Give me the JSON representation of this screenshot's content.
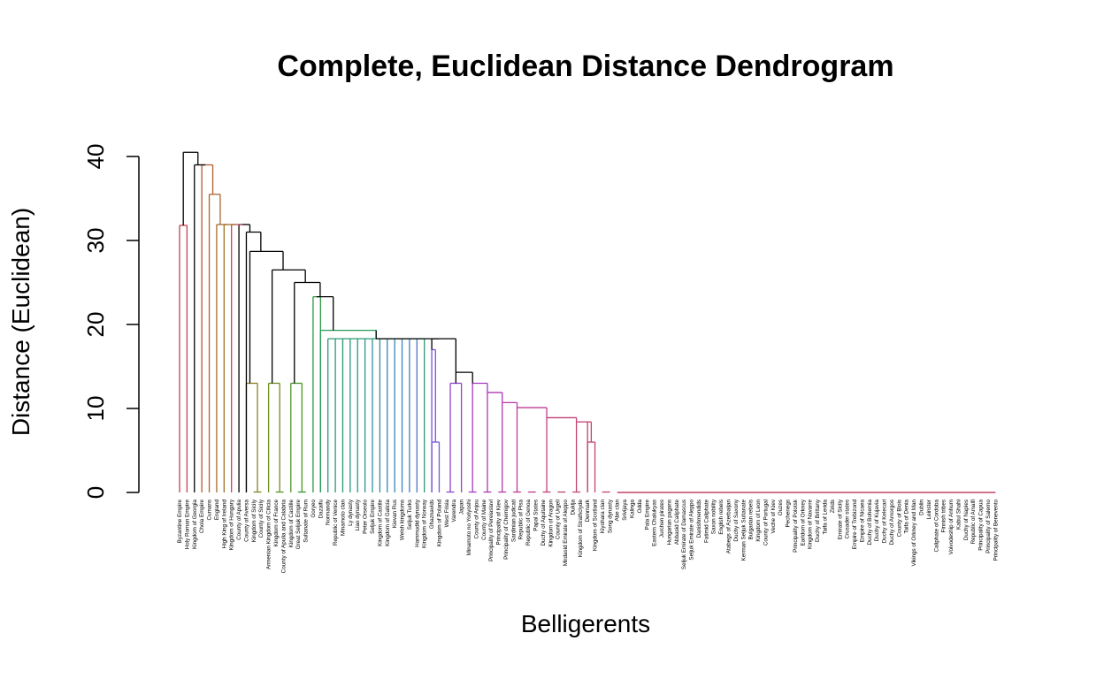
{
  "chart_data": {
    "type": "dendrogram",
    "title": "Complete, Euclidean Distance Dendrogram",
    "xlabel": "Belligerents",
    "ylabel": "Distance (Euclidean)",
    "ylim": [
      0,
      42
    ],
    "yticks": [
      0,
      10,
      20,
      30,
      40
    ],
    "leaves": [
      {
        "label": "Byzantine Empire",
        "color": "#c2434b"
      },
      {
        "label": "Holy Roman Empire",
        "color": "#c0463f"
      },
      {
        "label": "Kingdom of Georgia",
        "color": "#b9553a"
      },
      {
        "label": "Chola Empire",
        "color": "#b35d33"
      },
      {
        "label": "Cumans",
        "color": "#ad652f"
      },
      {
        "label": "England",
        "color": "#a66b2b"
      },
      {
        "label": "High King of Ireland",
        "color": "#a07128"
      },
      {
        "label": "Kingdom of Hungary",
        "color": "#997726"
      },
      {
        "label": "County of Apulia",
        "color": "#917c24"
      },
      {
        "label": "County of Aversa",
        "color": "#898123"
      },
      {
        "label": "Kingdom of Sicily",
        "color": "#818522"
      },
      {
        "label": "County of Sicily",
        "color": "#788922"
      },
      {
        "label": "Armenian Kingdom of Cilicia",
        "color": "#6e8d22"
      },
      {
        "label": "Kingdom of France",
        "color": "#639023"
      },
      {
        "label": "County of Apulia and Calabria",
        "color": "#579324"
      },
      {
        "label": "Kingdom of Castille",
        "color": "#4a9626"
      },
      {
        "label": "Great Seljuk Empire",
        "color": "#3c9829"
      },
      {
        "label": "Sultanate of Rum",
        "color": "#2f992e"
      },
      {
        "label": "Goryeo",
        "color": "#299a3d"
      },
      {
        "label": "Dazaifu",
        "color": "#289a4d"
      },
      {
        "label": "Normandy",
        "color": "#289a5b"
      },
      {
        "label": "Republic of Venice",
        "color": "#299968"
      },
      {
        "label": "Minamoto clan",
        "color": "#2a9874"
      },
      {
        "label": "Ly dynasty",
        "color": "#2b977f"
      },
      {
        "label": "Liao dynasty",
        "color": "#2c958a"
      },
      {
        "label": "Peter Orseolo",
        "color": "#2e9394"
      },
      {
        "label": "Seljuk Empire",
        "color": "#30909e"
      },
      {
        "label": "Kingdom of Castile",
        "color": "#338da8"
      },
      {
        "label": "Kingdom of Galicia",
        "color": "#3689b1"
      },
      {
        "label": "Kievan Rus",
        "color": "#3a85b9"
      },
      {
        "label": "Welsh kingdoms",
        "color": "#3f80c0"
      },
      {
        "label": "Seljuk Turks",
        "color": "#467ac6"
      },
      {
        "label": "Hammudid dynasty",
        "color": "#4f73cb"
      },
      {
        "label": "Kingdom of Norway",
        "color": "#596ccf"
      },
      {
        "label": "Ghaznavids",
        "color": "#6464d1"
      },
      {
        "label": "Kingdom of Poland",
        "color": "#6f5cd2"
      },
      {
        "label": "West Frisia",
        "color": "#7b53d1"
      },
      {
        "label": "Varendra",
        "color": "#864ccf"
      },
      {
        "label": "Japan",
        "color": "#9045cb"
      },
      {
        "label": "Minamoto no Yoriyoshi",
        "color": "#9940c6"
      },
      {
        "label": "County of Anjou",
        "color": "#a13cc0"
      },
      {
        "label": "County of Maine",
        "color": "#a83ab9"
      },
      {
        "label": "Principality of Pereiaslavl",
        "color": "#ae39b2"
      },
      {
        "label": "Principality of Kiev",
        "color": "#b339aa"
      },
      {
        "label": "Principality of Chernigov",
        "color": "#b739a2"
      },
      {
        "label": "Sardinian judicati",
        "color": "#ba3a9a"
      },
      {
        "label": "Republic of Pisa",
        "color": "#bd3b93"
      },
      {
        "label": "Republic of Genoa",
        "color": "#be3c8c"
      },
      {
        "label": "Papal States",
        "color": "#bf3d85"
      },
      {
        "label": "Duchy of Aquitaine",
        "color": "#c03e80"
      },
      {
        "label": "Kingdom of Aragon",
        "color": "#c03f7b"
      },
      {
        "label": "County of Urgell",
        "color": "#c04077"
      },
      {
        "label": "Mirdasid Emirate of Aleppo",
        "color": "#c04174"
      },
      {
        "label": "Duklja",
        "color": "#c04271"
      },
      {
        "label": "Kingdom of Strathclyde",
        "color": "#c0426f"
      },
      {
        "label": "Denmark",
        "color": "#c0436d"
      },
      {
        "label": "Kingdom of Scotland",
        "color": "#c0436b"
      },
      {
        "label": "Kiyohara clan",
        "color": "#c0446a"
      },
      {
        "label": "Song dynasty",
        "color": "#c04469"
      },
      {
        "label": "Abe clan",
        "color": "#c04568"
      },
      {
        "label": "Srivijaya",
        "color": "#c04567"
      },
      {
        "label": "Kalinga",
        "color": "#c04566"
      },
      {
        "label": "Odda",
        "color": "#c04565"
      },
      {
        "label": "Pala Empire",
        "color": "#c04565"
      },
      {
        "label": "Eastern Chalukyas",
        "color": "#c04565"
      },
      {
        "label": "Jurchen pirates",
        "color": "#c04565"
      },
      {
        "label": "Hungarian pagans",
        "color": "#c04565"
      },
      {
        "label": "Abbasid Caliphate",
        "color": "#c04565"
      },
      {
        "label": "Seljuk Emirate of Damascus",
        "color": "#c04565"
      },
      {
        "label": "Seljuk Emirate of Aleppo",
        "color": "#c04565"
      },
      {
        "label": "Danishmendids",
        "color": "#c04565"
      },
      {
        "label": "Fatimid Caliphate",
        "color": "#c04565"
      },
      {
        "label": "Saxon nobility",
        "color": "#c04565"
      },
      {
        "label": "English rebels",
        "color": "#c04565"
      },
      {
        "label": "Atabegs of Azerbaijan",
        "color": "#c04565"
      },
      {
        "label": "Duchy of Saxony",
        "color": "#c04565"
      },
      {
        "label": "Kerman Seljuk Sultanate",
        "color": "#c04565"
      },
      {
        "label": "Bulgarian rebels",
        "color": "#c04565"
      },
      {
        "label": "Kingdom of Leon",
        "color": "#c04565"
      },
      {
        "label": "County of Portugal",
        "color": "#c04565"
      },
      {
        "label": "Veche of Kiev",
        "color": "#c04565"
      },
      {
        "label": "Ouzes",
        "color": "#c04565"
      },
      {
        "label": "Pechenegs",
        "color": "#c04565"
      },
      {
        "label": "Principality of Polotsk",
        "color": "#c04565"
      },
      {
        "label": "Earldom of Orkney",
        "color": "#c04565"
      },
      {
        "label": "Kingdom of Navarre",
        "color": "#c04565"
      },
      {
        "label": "Duchy of Brittany",
        "color": "#c04565"
      },
      {
        "label": "Taifa of Lerida",
        "color": "#c04565"
      },
      {
        "label": "Zirids",
        "color": "#c04565"
      },
      {
        "label": "Emirate of Sicily",
        "color": "#c04565"
      },
      {
        "label": "Crusader states",
        "color": "#c04565"
      },
      {
        "label": "Empire of Trebizond",
        "color": "#c04565"
      },
      {
        "label": "Empire of Nicaea",
        "color": "#c04565"
      },
      {
        "label": "Duchy of Bohemia",
        "color": "#c04565"
      },
      {
        "label": "Duchy of Kujavia",
        "color": "#c04565"
      },
      {
        "label": "Duchy of Kelecari",
        "color": "#c04565"
      },
      {
        "label": "Duchy of Amorgos",
        "color": "#c04565"
      },
      {
        "label": "County of Blois",
        "color": "#c04565"
      },
      {
        "label": "Taifa of Denia",
        "color": "#c04565"
      },
      {
        "label": "Vikings of Orkney and Man",
        "color": "#c04565"
      },
      {
        "label": "Dublin",
        "color": "#c04565"
      },
      {
        "label": "Leinster",
        "color": "#c04565"
      },
      {
        "label": "Caliphate of Cordoba",
        "color": "#c04565"
      },
      {
        "label": "Finnish tribes",
        "color": "#c04565"
      },
      {
        "label": "Voivodeship of Anhum",
        "color": "#c04565"
      },
      {
        "label": "Kabul Shahi",
        "color": "#c04565"
      },
      {
        "label": "Duchy of Naples",
        "color": "#c04565"
      },
      {
        "label": "Republic of Amalfi",
        "color": "#c04565"
      },
      {
        "label": "Principality of Capua",
        "color": "#c04565"
      },
      {
        "label": "Principality of Salerno",
        "color": "#c04565"
      },
      {
        "label": "Principality of Benevento",
        "color": "#c04565"
      }
    ],
    "merges": [
      {
        "height": 0,
        "children": [
          {
            "c": [
              {
                "l": "Kingdom of Sicily"
              },
              {
                "l": "County of Sicily"
              }
            ],
            "h": 0
          }
        ]
      },
      {
        "h": 40.5,
        "c": [
          {
            "h": 31.8,
            "c": [
              {
                "l": "Byzantine Empire"
              },
              {
                "l": "Holy Roman Empire"
              }
            ],
            "col": "#c2434b"
          },
          {
            "h": 39.0,
            "c": [
              {
                "l": "Kingdom of Georgia"
              },
              {
                "h": 35.5,
                "c": [
                  {
                    "l": "Chola Empire"
                  },
                  {
                    "h": 31.9,
                    "c": [
                      {
                        "l": "Cumans"
                      },
                      {
                        "h": 31.9,
                        "c": [
                          {
                            "l": "England"
                          },
                          {
                            "h": 31.9,
                            "c": [
                              {
                                "l": "High King of Ireland"
                              },
                              {
                                "h": 31.9,
                                "c": [
                                  {
                                    "l": "Kingdom of Hungary"
                                  },
                                  {
                                    "h": 31.9,
                                    "c": [
                                      {
                                        "l": "County of Apulia"
                                      },
                                      {
                                        "h": 31.0,
                                        "c": [
                                          {
                                            "l": "County of Aversa"
                                          },
                                          {
                                            "h": 28.7,
                                            "c": [
                                              {
                                                "h": 13.0,
                                                "c": [
                                                  {
                                                    "l": "Kingdom of Sicily"
                                                  },
                                                  {
                                                    "h": 0,
                                                    "c": [
                                                      {
                                                        "l": "County of Sicily"
                                                      },
                                                      {
                                                        "l": "Armenian Kingdom of Cilicia"
                                                      }
                                                    ]
                                                  }
                                                ]
                                              },
                                              {
                                                "h": 26.5,
                                                "c": [
                                                  {
                                                    "h": 13.0,
                                                    "c": [
                                                      {
                                                        "l": "Kingdom of France"
                                                      },
                                                      {
                                                        "h": 0,
                                                        "c": [
                                                          {
                                                            "l": "County of Apulia and Calabria"
                                                          },
                                                          {
                                                            "l": "Kingdom of Castille"
                                                          }
                                                        ]
                                                      }
                                                    ]
                                                  },
                                                  {
                                                    "h": 25.0,
                                                    "c": [
                                                      {
                                                        "h": 25.0,
                                                        "c": [
                                                          {
                                                            "l": "Great Seljuk Empire"
                                                          },
                                                          {
                                                            "l": "Sultanate of Rum"
                                                          }
                                                        ]
                                                      },
                                                      {
                                                        "l": "Goryeo"
                                                      }
                                                    ]
                                                  }
                                                ]
                                              }
                                            ]
                                          }
                                        ]
                                      }
                                    ]
                                  }
                                ]
                              }
                            ]
                          }
                        ]
                      }
                    ]
                  }
                ]
              }
            ]
          }
        ]
      }
    ]
  }
}
